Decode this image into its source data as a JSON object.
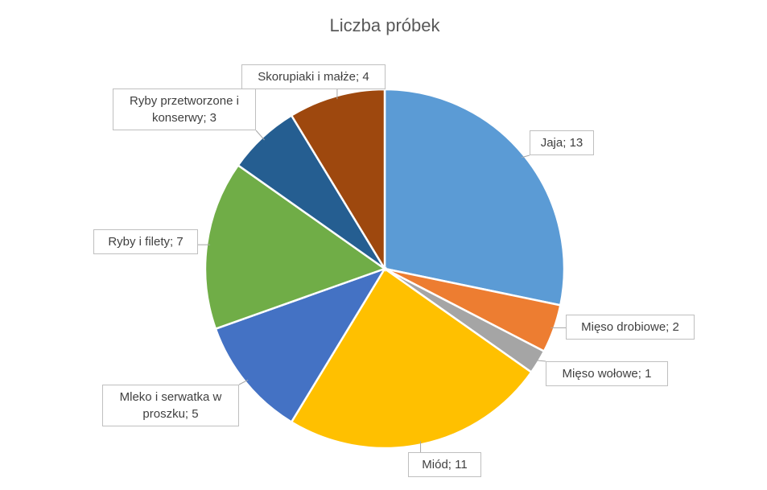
{
  "chart_data": {
    "type": "pie",
    "title": "Liczba próbek",
    "values": [
      13,
      2,
      1,
      11,
      5,
      7,
      3,
      4
    ],
    "value_labels": [
      "Jaja; 13",
      "Mięso drobiowe; 2",
      "Mięso wołowe; 1",
      "Miód; 11",
      "Mleko i serwatka w proszku; 5",
      "Ryby i filety; 7",
      "Ryby przetworzone i konserwy; 3",
      "Skorupiaki i małże; 4"
    ],
    "colors": [
      "#5b9bd5",
      "#ed7d31",
      "#a5a5a5",
      "#ffc000",
      "#4472c4",
      "#70ad47",
      "#255e91",
      "#9e480e"
    ]
  }
}
